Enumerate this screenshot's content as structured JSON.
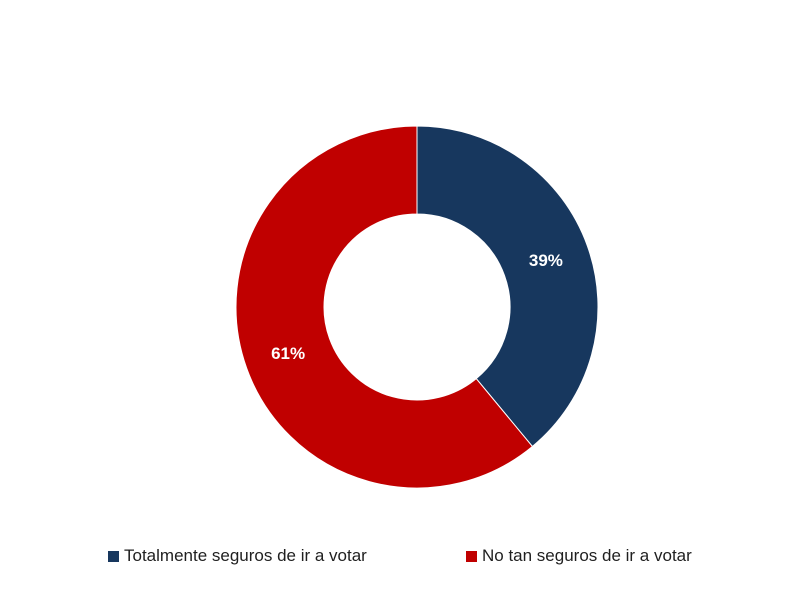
{
  "chart_data": {
    "type": "pie",
    "variant": "donut",
    "title": "",
    "slices": [
      {
        "label": "Totalmente seguros de ir a votar",
        "value": 39,
        "display": "39%",
        "color": "#17375E"
      },
      {
        "label": "No tan seguros de ir a votar",
        "value": 61,
        "display": "61%",
        "color": "#C00000"
      }
    ],
    "legend_position": "bottom",
    "start_angle": "12 o'clock",
    "direction": "clockwise"
  }
}
